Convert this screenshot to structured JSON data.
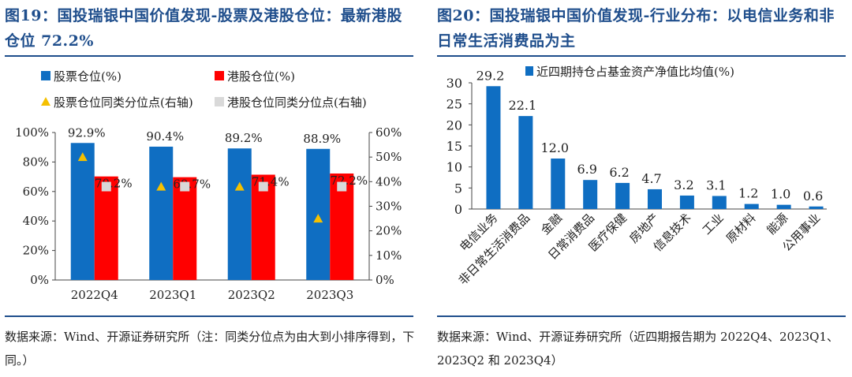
{
  "left": {
    "title": "图19：国投瑞银中国价值发现-股票及港股仓位：最新港股仓位 72.2%",
    "source": "数据来源：Wind、开源证券研究所（注：同类分位点为由大到小排序得到，下同。）"
  },
  "right": {
    "title": "图20：国投瑞银中国价值发现-行业分布：以电信业务和非日常生活消费品为主",
    "source": "数据来源：Wind、开源证券研究所（近四期报告期为 2022Q4、2023Q1、2023Q2 和 2023Q4）"
  },
  "chart_data": [
    {
      "type": "bar",
      "categories": [
        "2022Q4",
        "2023Q1",
        "2023Q2",
        "2023Q3"
      ],
      "series": [
        {
          "name": "股票仓位(%)",
          "kind": "bar",
          "axis": "left",
          "values": [
            92.9,
            90.4,
            89.2,
            88.9
          ],
          "labels": [
            "92.9%",
            "90.4%",
            "89.2%",
            "88.9%"
          ],
          "color": "#0f6ec2"
        },
        {
          "name": "港股仓位(%)",
          "kind": "bar",
          "axis": "left",
          "values": [
            70.2,
            69.7,
            71.4,
            72.2
          ],
          "labels": [
            "70.2%",
            "69.7%",
            "71.4%",
            "72.2%"
          ],
          "color": "#ff0000"
        },
        {
          "name": "股票仓位同类分位点(右轴)",
          "kind": "marker",
          "marker": "triangle",
          "axis": "right",
          "values": [
            50,
            38,
            38,
            25
          ],
          "color": "#f5c000"
        },
        {
          "name": "港股仓位同类分位点(右轴)",
          "kind": "marker",
          "marker": "square",
          "axis": "right",
          "values": [
            38,
            38,
            38,
            38
          ],
          "color": "#d9d9d9"
        }
      ],
      "y_left": {
        "lim": [
          0,
          100
        ],
        "ticks": [
          "0%",
          "20%",
          "40%",
          "60%",
          "80%",
          "100%"
        ]
      },
      "y_right": {
        "lim": [
          0,
          60
        ],
        "ticks": [
          "0%",
          "10%",
          "20%",
          "30%",
          "40%",
          "50%",
          "60%"
        ]
      },
      "legend": "top",
      "grid": false
    },
    {
      "type": "bar",
      "categories": [
        "电信业务",
        "非日常生活消费品",
        "金融",
        "日常消费品",
        "医疗保健",
        "房地产",
        "信息技术",
        "工业",
        "原材料",
        "能源",
        "公用事业"
      ],
      "series": [
        {
          "name": "近四期持仓占基金资产净值比均值(%)",
          "values": [
            29.2,
            22.1,
            12.0,
            6.9,
            6.2,
            4.7,
            3.2,
            3.1,
            1.2,
            1.0,
            0.6
          ],
          "labels": [
            "29.2",
            "22.1",
            "12.0",
            "6.9",
            "6.2",
            "4.7",
            "3.2",
            "3.1",
            "1.2",
            "1.0",
            "0.6"
          ],
          "color": "#0f6ec2"
        }
      ],
      "y": {
        "lim": [
          0,
          30
        ],
        "ticks": [
          "0",
          "5",
          "10",
          "15",
          "20",
          "25",
          "30"
        ]
      },
      "legend": "top",
      "grid": false
    }
  ]
}
